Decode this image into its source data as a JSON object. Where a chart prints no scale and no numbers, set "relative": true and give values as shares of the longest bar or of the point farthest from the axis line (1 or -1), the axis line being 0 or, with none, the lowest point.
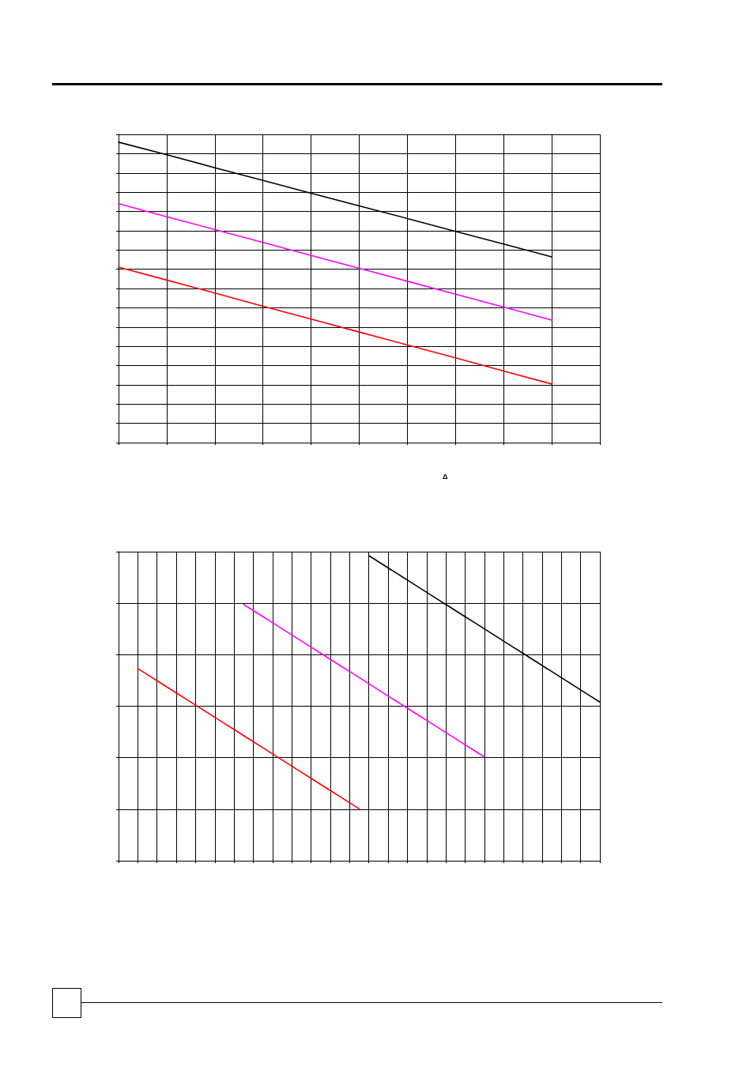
{
  "chart_data": [
    {
      "type": "line",
      "relative": true,
      "grid": true,
      "marker": "none",
      "line_style": "solid",
      "annotations": [
        "Δ"
      ],
      "categories": [
        null,
        null,
        null,
        null,
        null,
        null,
        null,
        null,
        null,
        null,
        null
      ],
      "series": [
        {
          "color": "#000000",
          "values": [
            1,
            0.958,
            0.915,
            0.873,
            0.83,
            0.788,
            0.746,
            0.703,
            0.661,
            0.618,
            null
          ]
        },
        {
          "color": "#ff00ff",
          "values": [
            0.795,
            0.752,
            0.709,
            0.666,
            0.623,
            0.58,
            0.537,
            0.494,
            0.451,
            0.408,
            null
          ]
        },
        {
          "color": "#ff0000",
          "values": [
            0.584,
            0.541,
            0.498,
            0.454,
            0.411,
            0.368,
            0.325,
            0.282,
            0.238,
            0.195,
            null
          ]
        }
      ]
    },
    {
      "type": "line",
      "relative": true,
      "grid": true,
      "marker": "none",
      "line_style": "solid",
      "categories": [
        null,
        null,
        null,
        null,
        null,
        null,
        null,
        null,
        null,
        null,
        null,
        null,
        null,
        null,
        null,
        null,
        null,
        null,
        null,
        null,
        null,
        null,
        null,
        null,
        null,
        null,
        null,
        null,
        null,
        null,
        null,
        null,
        null,
        null,
        null,
        null,
        null,
        null,
        null,
        null,
        null,
        null,
        null,
        null,
        null,
        null,
        null,
        null,
        null,
        null,
        null
      ],
      "series": [
        {
          "color": "#000000",
          "values": [
            null,
            null,
            null,
            null,
            null,
            null,
            null,
            null,
            null,
            null,
            null,
            null,
            null,
            null,
            null,
            null,
            null,
            null,
            null,
            null,
            null,
            null,
            null,
            null,
            null,
            null,
            1,
            0.98,
            0.96,
            0.94,
            0.92,
            0.9,
            0.88,
            0.86,
            0.84,
            0.82,
            0.8,
            0.78,
            0.76,
            0.74,
            0.72,
            0.7,
            0.68,
            0.66,
            0.64,
            0.62,
            0.6,
            0.58,
            0.56,
            0.54,
            0.52
          ]
        },
        {
          "color": "#ff00ff",
          "values": [
            null,
            null,
            null,
            null,
            null,
            null,
            null,
            null,
            null,
            null,
            null,
            null,
            null,
            0.84,
            0.82,
            0.8,
            0.78,
            0.76,
            0.74,
            0.72,
            0.7,
            0.68,
            0.66,
            0.64,
            0.62,
            0.6,
            0.58,
            0.56,
            0.54,
            0.52,
            0.5,
            0.48,
            0.46,
            0.44,
            0.42,
            0.4,
            0.38,
            0.36,
            0.34,
            null,
            null,
            null,
            null,
            null,
            null,
            null,
            null,
            null,
            null,
            null,
            null
          ]
        },
        {
          "color": "#ff0000",
          "values": [
            null,
            null,
            0.63,
            0.61,
            0.59,
            0.57,
            0.55,
            0.53,
            0.51,
            0.49,
            0.47,
            0.45,
            0.43,
            0.41,
            0.39,
            0.37,
            0.35,
            0.33,
            0.31,
            0.29,
            0.27,
            0.25,
            0.23,
            0.21,
            0.19,
            0.17,
            null,
            null,
            null,
            null,
            null,
            null,
            null,
            null,
            null,
            null,
            null,
            null,
            null,
            null,
            null,
            null,
            null,
            null,
            null,
            null,
            null,
            null,
            null,
            null,
            null
          ]
        }
      ]
    }
  ]
}
